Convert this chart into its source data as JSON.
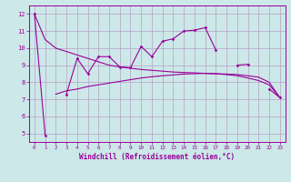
{
  "xlabel": "Windchill (Refroidissement éolien,°C)",
  "x": [
    0,
    1,
    2,
    3,
    4,
    5,
    6,
    7,
    8,
    9,
    10,
    11,
    12,
    13,
    14,
    15,
    16,
    17,
    18,
    19,
    20,
    21,
    22,
    23
  ],
  "jagged": [
    12,
    4.9,
    null,
    7.3,
    9.4,
    8.5,
    9.5,
    9.5,
    8.9,
    8.85,
    10.1,
    9.5,
    10.4,
    10.55,
    11.0,
    11.05,
    11.2,
    9.9,
    null,
    9.0,
    9.05,
    null,
    7.6,
    7.1
  ],
  "smooth_up": [
    null,
    null,
    7.3,
    7.5,
    7.6,
    7.75,
    7.85,
    7.95,
    8.05,
    8.15,
    8.25,
    8.32,
    8.38,
    8.43,
    8.48,
    8.5,
    8.52,
    8.5,
    8.45,
    8.38,
    8.25,
    8.1,
    7.85,
    7.1
  ],
  "smooth_down": [
    12,
    10.5,
    10.0,
    9.8,
    9.6,
    9.4,
    9.2,
    9.0,
    8.9,
    8.82,
    8.75,
    8.7,
    8.65,
    8.6,
    8.57,
    8.55,
    8.52,
    8.5,
    8.48,
    8.45,
    8.38,
    8.3,
    8.0,
    7.1
  ],
  "line_color": "#990099",
  "bg_color": "#cce8e8",
  "grid_color": "#b8a0c8",
  "ylim": [
    4.5,
    12.5
  ],
  "xlim": [
    -0.5,
    23.5
  ],
  "yticks": [
    5,
    6,
    7,
    8,
    9,
    10,
    11,
    12
  ],
  "xticks": [
    0,
    1,
    2,
    3,
    4,
    5,
    6,
    7,
    8,
    9,
    10,
    11,
    12,
    13,
    14,
    15,
    16,
    17,
    18,
    19,
    20,
    21,
    22,
    23
  ]
}
